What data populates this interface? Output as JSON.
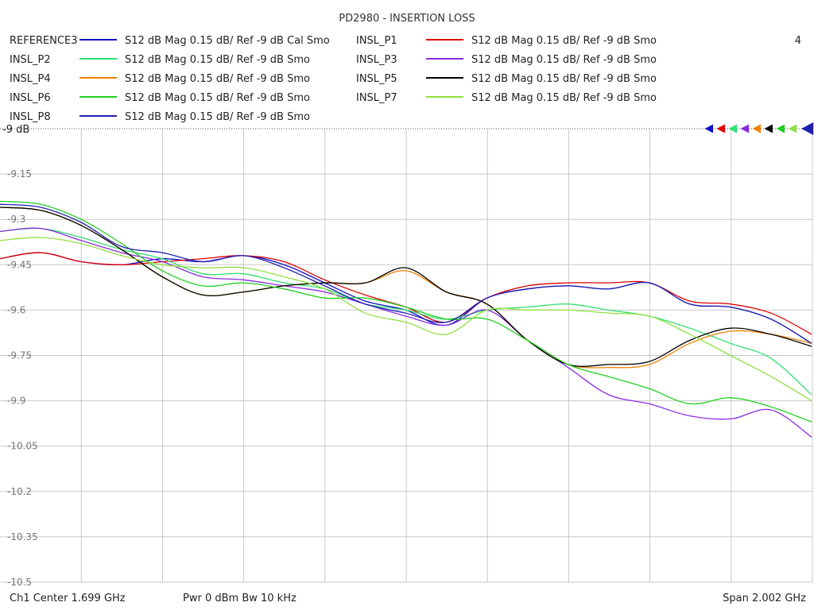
{
  "chart_data": {
    "type": "line",
    "title": "PD2980 - INSERTION LOSS",
    "channel_number": "4",
    "ref_label": "-9 dB",
    "ylim": [
      -10.5,
      -9.0
    ],
    "yticks": [
      "-9.15",
      "-9.3",
      "-9.45",
      "-9.6",
      "-9.75",
      "-9.9",
      "-10.05",
      "-10.2",
      "-10.35",
      "-10.5"
    ],
    "ytick_values": [
      -9.15,
      -9.3,
      -9.45,
      -9.6,
      -9.75,
      -9.9,
      -10.05,
      -10.2,
      -10.35,
      -10.5
    ],
    "xlim": [
      0.698,
      2.7
    ],
    "x_divisions": 10,
    "grid": true,
    "legend_position": "top",
    "x": [
      0.698,
      0.798,
      0.898,
      0.998,
      1.098,
      1.198,
      1.298,
      1.398,
      1.498,
      1.598,
      1.698,
      1.798,
      1.898,
      1.998,
      2.098,
      2.198,
      2.298,
      2.398,
      2.498,
      2.598,
      2.698
    ],
    "series": [
      {
        "name": "REFERENCE3",
        "desc": "S12  dB Mag  0.15 dB/ Ref -9 dB  Cal Smo",
        "color": "#1010c8",
        "values": [
          -9.43,
          -9.41,
          -9.44,
          -9.45,
          -9.43,
          -9.44,
          -9.42,
          -9.45,
          -9.51,
          -9.57,
          -9.6,
          -9.65,
          -9.56,
          -9.53,
          -9.52,
          -9.53,
          -9.51,
          -9.58,
          -9.59,
          -9.63,
          -9.71
        ]
      },
      {
        "name": "INSL_P1",
        "desc": "S12  dB Mag  0.15 dB/ Ref -9 dB  Smo",
        "color": "#e00000",
        "values": [
          -9.43,
          -9.41,
          -9.44,
          -9.45,
          -9.44,
          -9.43,
          -9.42,
          -9.44,
          -9.5,
          -9.55,
          -9.59,
          -9.64,
          -9.56,
          -9.52,
          -9.51,
          -9.51,
          -9.51,
          -9.57,
          -9.58,
          -9.61,
          -9.68
        ]
      },
      {
        "name": "INSL_P2",
        "desc": "S12  dB Mag  0.15 dB/ Ref -9 dB  Smo",
        "color": "#30e070",
        "values": [
          -9.34,
          -9.33,
          -9.36,
          -9.4,
          -9.43,
          -9.48,
          -9.48,
          -9.51,
          -9.53,
          -9.58,
          -9.6,
          -9.63,
          -9.6,
          -9.59,
          -9.58,
          -9.6,
          -9.62,
          -9.66,
          -9.71,
          -9.76,
          -9.88
        ]
      },
      {
        "name": "INSL_P3",
        "desc": "S12  dB Mag  0.15 dB/ Ref -9 dB  Smo",
        "color": "#8a2be2",
        "values": [
          -9.34,
          -9.33,
          -9.37,
          -9.41,
          -9.44,
          -9.49,
          -9.5,
          -9.52,
          -9.54,
          -9.58,
          -9.62,
          -9.65,
          -9.6,
          -9.7,
          -9.79,
          -9.88,
          -9.91,
          -9.95,
          -9.96,
          -9.93,
          -10.02
        ]
      },
      {
        "name": "INSL_P4",
        "desc": "S12  dB Mag  0.15 dB/ Ref -9 dB  Smo",
        "color": "#f08000",
        "values": [
          -9.26,
          -9.27,
          -9.32,
          -9.4,
          -9.49,
          -9.55,
          -9.54,
          -9.52,
          -9.51,
          -9.51,
          -9.47,
          -9.54,
          -9.58,
          -9.7,
          -9.78,
          -9.79,
          -9.78,
          -9.71,
          -9.67,
          -9.68,
          -9.71
        ]
      },
      {
        "name": "INSL_P5",
        "desc": "S12  dB Mag  0.15 dB/ Ref -9 dB  Smo",
        "color": "#000000",
        "values": [
          -9.26,
          -9.27,
          -9.32,
          -9.4,
          -9.49,
          -9.55,
          -9.54,
          -9.52,
          -9.51,
          -9.51,
          -9.46,
          -9.54,
          -9.58,
          -9.7,
          -9.78,
          -9.78,
          -9.77,
          -9.7,
          -9.66,
          -9.68,
          -9.72
        ]
      },
      {
        "name": "INSL_P6",
        "desc": "S12  dB Mag  0.15 dB/ Ref -9 dB  Smo",
        "color": "#20d020",
        "values": [
          -9.24,
          -9.25,
          -9.3,
          -9.38,
          -9.47,
          -9.52,
          -9.51,
          -9.53,
          -9.56,
          -9.56,
          -9.59,
          -9.63,
          -9.63,
          -9.7,
          -9.78,
          -9.82,
          -9.86,
          -9.91,
          -9.89,
          -9.92,
          -9.97
        ]
      },
      {
        "name": "INSL_P7",
        "desc": "S12  dB Mag  0.15 dB/ Ref -9 dB  Smo",
        "color": "#90e040",
        "values": [
          -9.37,
          -9.36,
          -9.38,
          -9.42,
          -9.45,
          -9.46,
          -9.46,
          -9.49,
          -9.53,
          -9.61,
          -9.64,
          -9.68,
          -9.6,
          -9.6,
          -9.6,
          -9.61,
          -9.62,
          -9.68,
          -9.75,
          -9.82,
          -9.9
        ]
      },
      {
        "name": "INSL_P8",
        "desc": "S12  dB Mag  0.15 dB/ Ref -9 dB  Smo",
        "color": "#2020b0",
        "values": [
          -9.25,
          -9.26,
          -9.31,
          -9.39,
          -9.41,
          -9.44,
          -9.42,
          -9.46,
          -9.52,
          -9.58,
          -9.61,
          -9.64,
          -9.56,
          -9.53,
          -9.52,
          -9.53,
          -9.51,
          -9.58,
          -9.59,
          -9.63,
          -9.71
        ]
      }
    ],
    "footer": {
      "channel_center": "Ch1  Center  1.699 GHz",
      "power_bw": "Pwr  0 dBm  Bw  10 kHz",
      "span": "Span  2.002 GHz"
    }
  }
}
